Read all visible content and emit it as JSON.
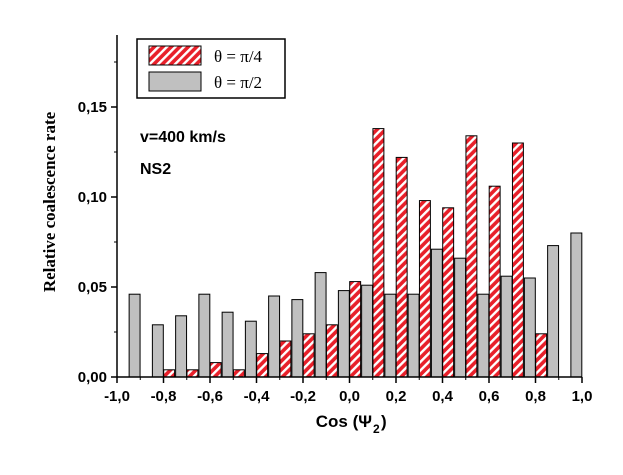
{
  "chart_data": {
    "type": "bar",
    "title": "",
    "xlabel": "Cos (Ψ",
    "xlabel_sub": "2",
    "xlabel_end": ")",
    "ylabel": "Relative coalescence rate",
    "xlim": [
      -1.0,
      1.0
    ],
    "ylim": [
      0.0,
      0.19
    ],
    "xticks": [
      "-1,0",
      "-0,8",
      "-0,6",
      "-0,4",
      "-0,2",
      "0,0",
      "0,2",
      "0,4",
      "0,6",
      "0,8",
      "1,0"
    ],
    "yticks": [
      "0,00",
      "0,05",
      "0,10",
      "0,15"
    ],
    "legend_position": "top-left",
    "annotations": [
      "v=400 km/s",
      "NS2"
    ],
    "x": [
      -0.95,
      -0.85,
      -0.75,
      -0.65,
      -0.55,
      -0.45,
      -0.35,
      -0.25,
      -0.15,
      -0.05,
      0.05,
      0.15,
      0.25,
      0.35,
      0.45,
      0.55,
      0.65,
      0.75,
      0.85,
      0.95
    ],
    "series": [
      {
        "name": "θ = π/4",
        "color": "#e8202a",
        "pattern": "hatched",
        "values": [
          0.0,
          0.0,
          0.004,
          0.004,
          0.008,
          0.004,
          0.013,
          0.02,
          0.024,
          0.029,
          0.053,
          0.138,
          0.122,
          0.098,
          0.094,
          0.134,
          0.106,
          0.13,
          0.024,
          0.0
        ]
      },
      {
        "name": "θ = π/2",
        "color": "#c0c0c0",
        "pattern": "solid",
        "values": [
          0.046,
          0.029,
          0.034,
          0.046,
          0.036,
          0.031,
          0.045,
          0.043,
          0.058,
          0.048,
          0.051,
          0.046,
          0.046,
          0.071,
          0.066,
          0.046,
          0.056,
          0.055,
          0.073,
          0.08
        ]
      }
    ]
  }
}
